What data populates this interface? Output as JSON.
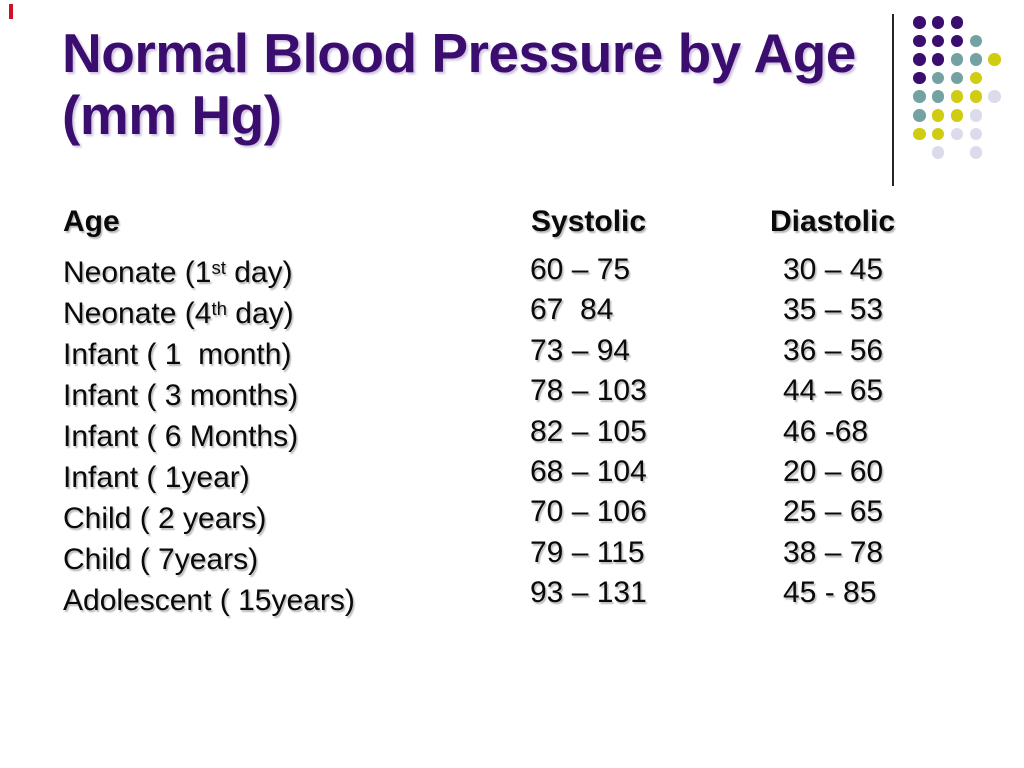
{
  "slide": {
    "title": {
      "line1": "Normal Blood Pressure by Age",
      "line2": "(mm Hg)"
    },
    "title_color": "#3A0D6E",
    "accent_red": "#CC1122",
    "text_color": "#0A0A0A",
    "background": "#FFFFFF"
  },
  "decoration": {
    "divider_color": "#262626",
    "dot_colors": {
      "P": "#3A0D6E",
      "T": "#74A2A2",
      "Y": "#CFCC11",
      "L": "#DBDBEB"
    },
    "dot_rows": [
      "PPP..",
      "PPPT.",
      "PPTTY",
      "PTTY.",
      "TTYYL",
      "TYYL.",
      "YYLL.",
      ".L.L."
    ]
  },
  "table": {
    "headers": {
      "age": "Age",
      "systolic": "Systolic",
      "diastolic": "Diastolic"
    },
    "rows": [
      {
        "age": [
          "Neonate (1",
          {
            "sup": "st"
          },
          " day)"
        ],
        "systolic": "60 – 75",
        "diastolic": "30 – 45"
      },
      {
        "age": [
          "Neonate (4",
          {
            "sup": "th"
          },
          " day)"
        ],
        "systolic": "67  84",
        "diastolic": "35 – 53"
      },
      {
        "age": [
          "Infant ( 1  month)"
        ],
        "systolic": "73 – 94",
        "diastolic": "36 – 56"
      },
      {
        "age": [
          "Infant ( 3 months)"
        ],
        "systolic": "78 – 103",
        "diastolic": "44 – 65"
      },
      {
        "age": [
          "Infant ( 6 Months)"
        ],
        "systolic": "82 – 105",
        "diastolic": "46 -68"
      },
      {
        "age": [
          "Infant ( 1year)"
        ],
        "systolic": "68 – 104",
        "diastolic": "20 – 60"
      },
      {
        "age": [
          "Child ( 2 years)"
        ],
        "systolic": "70 – 106",
        "diastolic": "25 – 65"
      },
      {
        "age": [
          "Child ( 7years)"
        ],
        "systolic": "79 – 115",
        "diastolic": "38 – 78"
      },
      {
        "age": [
          "Adolescent ( 15years)"
        ],
        "systolic": "93 – 131",
        "diastolic": "45 - 85"
      }
    ]
  }
}
